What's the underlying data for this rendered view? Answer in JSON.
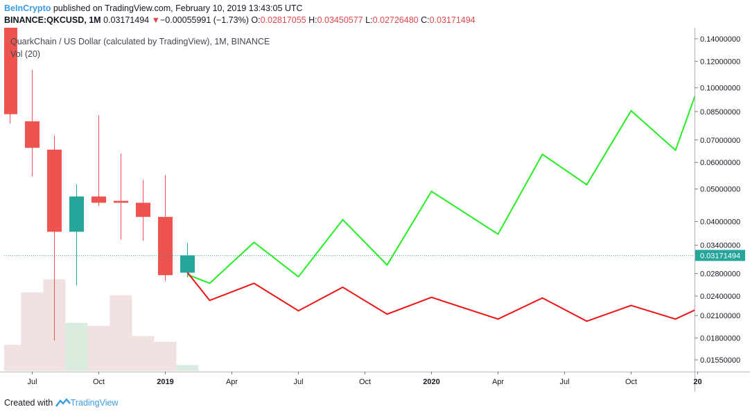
{
  "header": {
    "brand": "BeInCrypto",
    "published": " published on TradingView.com, February 10, 2019 13:43:05 UTC",
    "symbol": "BINANCE:QKCUSD, 1M",
    "last": "0.03171494",
    "change_arrow": "▼",
    "change": "−0.00055991 (−1.73%)",
    "o_label": "O:",
    "o": "0.02817055",
    "h_label": "H:",
    "h": "0.03450577",
    "l_label": "L:",
    "l": "0.02726480",
    "c_label": "C:",
    "c": "0.03171494"
  },
  "footer": {
    "created_with": "Created with",
    "brand": "TradingView"
  },
  "colors": {
    "up": "#26a69a",
    "down": "#ef5350",
    "vol_up": "#d9ecdd",
    "vol_down": "#f2e1e1",
    "bull_path": "#22ee22",
    "bear_path": "#ee1111",
    "grid_axis": "#b2b5be"
  },
  "chart_data": {
    "type": "candlestick",
    "title": "QuarkChain / US Dollar (calculated by TradingView), 1M, BINANCE",
    "indicator_label": "Vol (20)",
    "y_scale": "log",
    "ylim": [
      0.0143,
      0.151
    ],
    "y_ticks": [
      "0.14000000",
      "0.12000000",
      "0.10000000",
      "0.08500000",
      "0.07000000",
      "0.06000000",
      "0.05000000",
      "0.04000000",
      "0.03400000",
      "0.02800000",
      "0.02400000",
      "0.02100000",
      "0.01800000",
      "0.01550000"
    ],
    "x_ticks": [
      {
        "label": "Jul",
        "t": 1,
        "bold": false
      },
      {
        "label": "Oct",
        "t": 4,
        "bold": false
      },
      {
        "label": "2019",
        "t": 7,
        "bold": true
      },
      {
        "label": "Apr",
        "t": 10,
        "bold": false
      },
      {
        "label": "Jul",
        "t": 13,
        "bold": false
      },
      {
        "label": "Oct",
        "t": 16,
        "bold": false
      },
      {
        "label": "2020",
        "t": 19,
        "bold": true
      },
      {
        "label": "Apr",
        "t": 22,
        "bold": false
      },
      {
        "label": "Jul",
        "t": 25,
        "bold": false
      },
      {
        "label": "Oct",
        "t": 28,
        "bold": false
      },
      {
        "label": "20",
        "t": 31,
        "bold": true
      }
    ],
    "candles": [
      {
        "date": "2018-06",
        "o": 0.155,
        "h": 0.16,
        "l": 0.0783,
        "c": 0.0835
      },
      {
        "date": "2018-07",
        "o": 0.0795,
        "h": 0.113,
        "l": 0.0545,
        "c": 0.0663
      },
      {
        "date": "2018-08",
        "o": 0.0655,
        "h": 0.0722,
        "l": 0.0177,
        "c": 0.0373
      },
      {
        "date": "2018-09",
        "o": 0.0373,
        "h": 0.0517,
        "l": 0.0258,
        "c": 0.0475
      },
      {
        "date": "2018-10",
        "o": 0.0475,
        "h": 0.0828,
        "l": 0.0445,
        "c": 0.0455
      },
      {
        "date": "2018-11",
        "o": 0.0461,
        "h": 0.0637,
        "l": 0.0354,
        "c": 0.0455
      },
      {
        "date": "2018-12",
        "o": 0.0455,
        "h": 0.0532,
        "l": 0.0351,
        "c": 0.0413
      },
      {
        "date": "2019-01",
        "o": 0.0413,
        "h": 0.055,
        "l": 0.0266,
        "c": 0.0277
      },
      {
        "date": "2019-02",
        "o": 0.02817055,
        "h": 0.03450577,
        "l": 0.0272648,
        "c": 0.03171494
      }
    ],
    "volume": [
      {
        "date": "2018-06",
        "v": 0.18,
        "up": false
      },
      {
        "date": "2018-07",
        "v": 0.54,
        "up": false
      },
      {
        "date": "2018-08",
        "v": 0.63,
        "up": false
      },
      {
        "date": "2018-09",
        "v": 0.33,
        "up": true
      },
      {
        "date": "2018-10",
        "v": 0.31,
        "up": false
      },
      {
        "date": "2018-11",
        "v": 0.52,
        "up": false
      },
      {
        "date": "2018-12",
        "v": 0.24,
        "up": false
      },
      {
        "date": "2019-01",
        "v": 0.2,
        "up": false
      },
      {
        "date": "2019-02",
        "v": 0.04,
        "up": true
      }
    ],
    "last_price": 0.03171494,
    "last_price_label": "0.03171494",
    "projection_bull": [
      {
        "date": "2019-02",
        "y": 0.0278
      },
      {
        "date": "2019-03",
        "y": 0.0262
      },
      {
        "date": "2019-05",
        "y": 0.0347
      },
      {
        "date": "2019-07",
        "y": 0.0274
      },
      {
        "date": "2019-09",
        "y": 0.0405
      },
      {
        "date": "2019-11",
        "y": 0.0297
      },
      {
        "date": "2020-01",
        "y": 0.0492
      },
      {
        "date": "2020-04",
        "y": 0.0367
      },
      {
        "date": "2020-06",
        "y": 0.0634
      },
      {
        "date": "2020-08",
        "y": 0.0515
      },
      {
        "date": "2020-10",
        "y": 0.0855
      },
      {
        "date": "2020-12",
        "y": 0.0652
      },
      {
        "date": "2021-01",
        "y": 0.0995
      }
    ],
    "projection_bear": [
      {
        "date": "2019-02",
        "y": 0.0282
      },
      {
        "date": "2019-03",
        "y": 0.0233
      },
      {
        "date": "2019-05",
        "y": 0.0262
      },
      {
        "date": "2019-07",
        "y": 0.0217
      },
      {
        "date": "2019-09",
        "y": 0.0255
      },
      {
        "date": "2019-11",
        "y": 0.0212
      },
      {
        "date": "2020-01",
        "y": 0.0238
      },
      {
        "date": "2020-04",
        "y": 0.0205
      },
      {
        "date": "2020-06",
        "y": 0.0237
      },
      {
        "date": "2020-08",
        "y": 0.0202
      },
      {
        "date": "2020-10",
        "y": 0.0225
      },
      {
        "date": "2020-12",
        "y": 0.0205
      },
      {
        "date": "2021-01",
        "y": 0.022
      }
    ]
  }
}
